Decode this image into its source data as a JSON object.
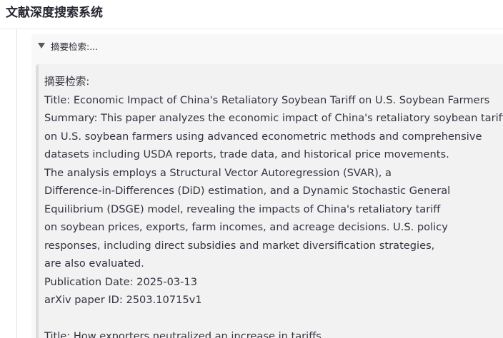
{
  "app": {
    "title": "文献深度搜索系统"
  },
  "expander": {
    "label": "摘要检索:..."
  },
  "content": {
    "heading": "摘要检索:",
    "lines": [
      "Title: Economic Impact of China's Retaliatory Soybean Tariff on U.S. Soybean Farmers",
      "Summary: This paper analyzes the economic impact of China's retaliatory soybean tariff",
      "on U.S. soybean farmers using advanced econometric methods and comprehensive",
      "datasets including USDA reports, trade data, and historical price movements.",
      "The analysis employs a Structural Vector Autoregression (SVAR), a",
      "Difference-in-Differences (DiD) estimation, and a Dynamic Stochastic General",
      "Equilibrium (DSGE) model, revealing the impacts of China's retaliatory tariff",
      "on soybean prices, exports, farm incomes, and acreage decisions. U.S. policy",
      "responses, including direct subsidies and market diversification strategies,",
      "are also evaluated.",
      "Publication Date: 2025-03-13",
      "arXiv paper ID: 2503.10715v1"
    ],
    "next_title": "Title: How exporters neutralized an increase in tariffs"
  }
}
